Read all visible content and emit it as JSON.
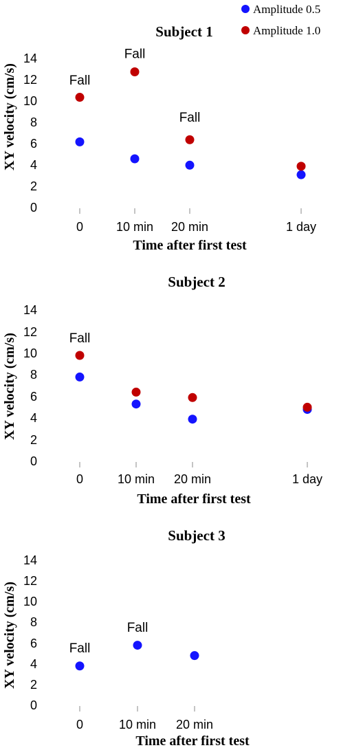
{
  "legend": [
    {
      "name": "Amplitude 0.5",
      "color": "#1414ff"
    },
    {
      "name": "Amplitude 1.0",
      "color": "#c00000"
    }
  ],
  "chart_data": [
    {
      "type": "scatter",
      "title": "Subject 1",
      "xlabel": "Time after first test",
      "ylabel": "XY velocity (cm/s)",
      "x_categories": [
        "0",
        "10 min",
        "20 min",
        "1 day"
      ],
      "ylim": [
        0,
        14
      ],
      "yticks": [
        0,
        2,
        4,
        6,
        8,
        10,
        12,
        14
      ],
      "grid": false,
      "legend_position": "top-right",
      "series": [
        {
          "name": "Amplitude 0.5",
          "values": [
            6.2,
            4.6,
            4.0,
            3.1
          ]
        },
        {
          "name": "Amplitude 1.0",
          "values": [
            10.4,
            12.8,
            6.4,
            3.9
          ]
        }
      ],
      "annotations": [
        {
          "text": "Fall",
          "category": "0",
          "value": 11.6
        },
        {
          "text": "Fall",
          "category": "10 min",
          "value": 14.1
        },
        {
          "text": "Fall",
          "category": "20 min",
          "value": 8.1
        }
      ]
    },
    {
      "type": "scatter",
      "title": "Subject 2",
      "xlabel": "Time after first test",
      "ylabel": "XY velocity (cm/s)",
      "x_categories": [
        "0",
        "10 min",
        "20 min",
        "1 day"
      ],
      "ylim": [
        0,
        14
      ],
      "yticks": [
        0,
        2,
        4,
        6,
        8,
        10,
        12,
        14
      ],
      "grid": false,
      "series": [
        {
          "name": "Amplitude 0.5",
          "values": [
            7.8,
            5.3,
            3.9,
            4.8
          ]
        },
        {
          "name": "Amplitude 1.0",
          "values": [
            9.8,
            6.4,
            5.9,
            5.0
          ]
        }
      ],
      "annotations": [
        {
          "text": "Fall",
          "category": "0",
          "value": 11.0
        }
      ]
    },
    {
      "type": "scatter",
      "title": "Subject 3",
      "xlabel": "Time after first test",
      "ylabel": "XY velocity (cm/s)",
      "x_categories": [
        "0",
        "10 min",
        "20 min"
      ],
      "ylim": [
        0,
        14
      ],
      "yticks": [
        0,
        2,
        4,
        6,
        8,
        10,
        12,
        14
      ],
      "grid": false,
      "series": [
        {
          "name": "Amplitude 0.5",
          "values": [
            3.8,
            5.8,
            4.8
          ]
        }
      ],
      "annotations": [
        {
          "text": "Fall",
          "category": "0",
          "value": 5.1
        },
        {
          "text": "Fall",
          "category": "10 min",
          "value": 7.1
        }
      ]
    }
  ]
}
